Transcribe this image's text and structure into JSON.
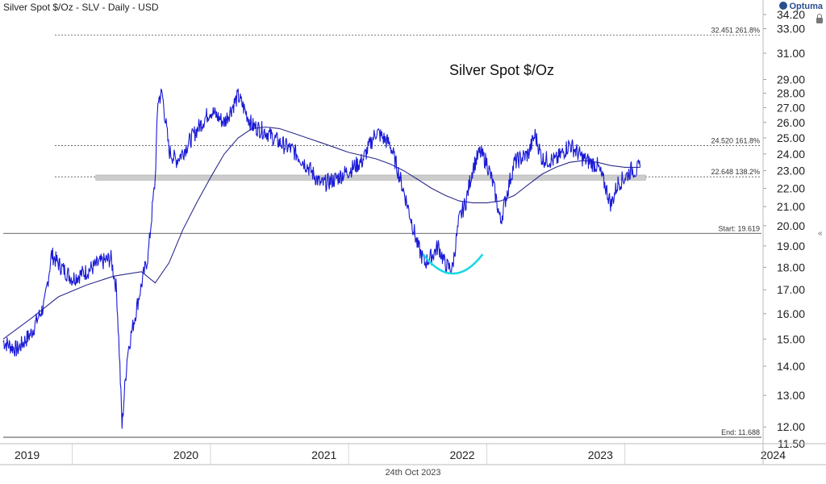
{
  "header": {
    "title": "Silver Spot $/Oz - SLV - Daily - USD",
    "logo": "Optuma"
  },
  "footer": {
    "date": "24th Oct 2023"
  },
  "chart_data": {
    "type": "line",
    "title": "Silver Spot $/Oz",
    "x_tick_labels": [
      "2019",
      "2020",
      "2021",
      "2022",
      "2023",
      "2024"
    ],
    "y_tick_labels": [
      "11.50",
      "12.00",
      "13.00",
      "14.00",
      "15.00",
      "16.00",
      "17.00",
      "18.00",
      "19.00",
      "20.00",
      "21.00",
      "22.00",
      "23.00",
      "24.00",
      "25.00",
      "26.00",
      "27.00",
      "28.00",
      "29.00",
      "31.00",
      "33.00",
      "34.20"
    ],
    "ylim": [
      11.5,
      34.2
    ],
    "xlim": [
      2019.0,
      2024.5
    ],
    "series": [
      {
        "x": [
          2019.0,
          2019.1,
          2019.2,
          2019.3,
          2019.35,
          2019.42,
          2019.5,
          2019.6,
          2019.7,
          2019.78,
          2019.82,
          2019.86,
          2019.9,
          2019.95,
          2020.0,
          2020.05,
          2020.1,
          2020.12,
          2020.15,
          2020.2,
          2020.25,
          2020.3,
          2020.4,
          2020.5,
          2020.6,
          2020.7,
          2020.8,
          2020.9,
          2021.0,
          2021.1,
          2021.2,
          2021.3,
          2021.4,
          2021.5,
          2021.6,
          2021.7,
          2021.8,
          2021.9,
          2022.0,
          2022.05,
          2022.1,
          2022.15,
          2022.2,
          2022.25,
          2022.3,
          2022.35,
          2022.4,
          2022.45,
          2022.5,
          2022.55,
          2022.6,
          2022.7,
          2022.8,
          2022.85,
          2022.9,
          2023.0,
          2023.1,
          2023.2,
          2023.3,
          2023.35,
          2023.4,
          2023.45,
          2023.5,
          2023.55,
          2023.58,
          2023.61
        ],
        "values": [
          14.9,
          14.6,
          15.2,
          16.4,
          18.6,
          18.0,
          17.5,
          17.8,
          18.2,
          18.4,
          17.0,
          12.0,
          14.5,
          15.8,
          17.2,
          18.6,
          22.5,
          27.5,
          28.0,
          24.2,
          23.6,
          24.1,
          25.5,
          26.8,
          26.0,
          27.8,
          25.8,
          25.4,
          24.7,
          24.2,
          23.3,
          22.2,
          22.5,
          23.0,
          23.6,
          25.4,
          24.6,
          21.8,
          19.0,
          18.2,
          18.5,
          19.0,
          18.1,
          17.9,
          20.3,
          21.3,
          23.2,
          24.1,
          23.5,
          22.1,
          20.2,
          23.5,
          24.0,
          25.2,
          23.7,
          23.6,
          24.6,
          23.7,
          23.3,
          22.3,
          21.1,
          22.3,
          22.6,
          23.1,
          23.0,
          23.2
        ]
      },
      {
        "x": [
          2019.0,
          2019.2,
          2019.4,
          2019.6,
          2019.8,
          2020.0,
          2020.1,
          2020.2,
          2020.3,
          2020.4,
          2020.5,
          2020.6,
          2020.7,
          2020.8,
          2020.9,
          2021.0,
          2021.1,
          2021.2,
          2021.3,
          2021.4,
          2021.5,
          2021.6,
          2021.7,
          2021.8,
          2021.9,
          2022.0,
          2022.1,
          2022.2,
          2022.3,
          2022.4,
          2022.5,
          2022.6,
          2022.7,
          2022.8,
          2022.9,
          2023.0,
          2023.1,
          2023.2,
          2023.3,
          2023.4,
          2023.5,
          2023.61
        ],
        "values": [
          15.0,
          15.8,
          16.7,
          17.2,
          17.6,
          17.8,
          17.3,
          18.2,
          19.8,
          21.2,
          22.6,
          24.0,
          25.0,
          25.6,
          25.7,
          25.6,
          25.3,
          25.0,
          24.7,
          24.4,
          24.1,
          23.9,
          23.7,
          23.4,
          23.0,
          22.5,
          22.0,
          21.6,
          21.3,
          21.2,
          21.2,
          21.3,
          21.6,
          22.2,
          22.8,
          23.2,
          23.5,
          23.6,
          23.5,
          23.3,
          23.2,
          23.2
        ]
      }
    ],
    "reference_lines": [
      {
        "label": "32.451   261.8%",
        "value": 32.451
      },
      {
        "label": "24.520   161.8%",
        "value": 24.52
      },
      {
        "label": "22.648   138.2%",
        "value": 22.648
      },
      {
        "label": "Start:   19.619",
        "value": 19.619
      },
      {
        "label": "End:   11.688",
        "value": 11.688
      }
    ],
    "support_band": [
      22.45,
      22.75
    ],
    "grid": false,
    "colors": {
      "price": "#1a1ad6",
      "moving_average": "#2b2b8c",
      "arc": "#19d8e8",
      "band": "#cccccc"
    }
  }
}
